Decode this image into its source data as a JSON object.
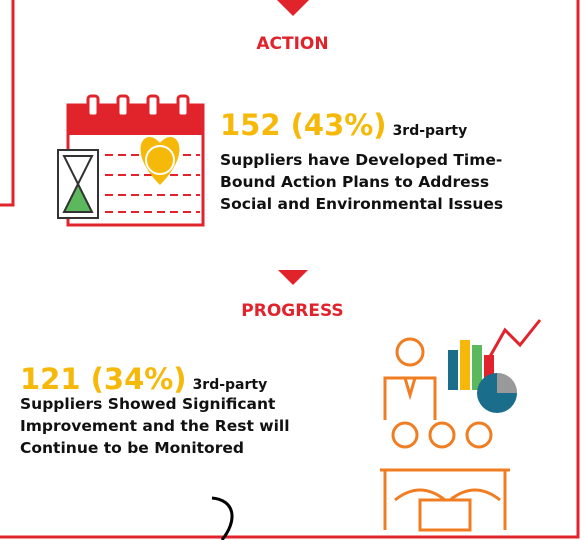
{
  "sections": [
    {
      "heading": "ACTION",
      "figure": "152 (43%)",
      "suffix": "3rd-party",
      "description_lines": [
        "Suppliers have Developed Time-",
        "Bound Action Plans to Address",
        "Social and Environmental Issues"
      ]
    },
    {
      "heading": "PROGRESS",
      "figure": "121 (34%)",
      "suffix": "3rd-party",
      "description_lines": [
        "Suppliers Showed Significant",
        "Improvement and the Rest will",
        "Continue to be Monitored"
      ]
    }
  ]
}
